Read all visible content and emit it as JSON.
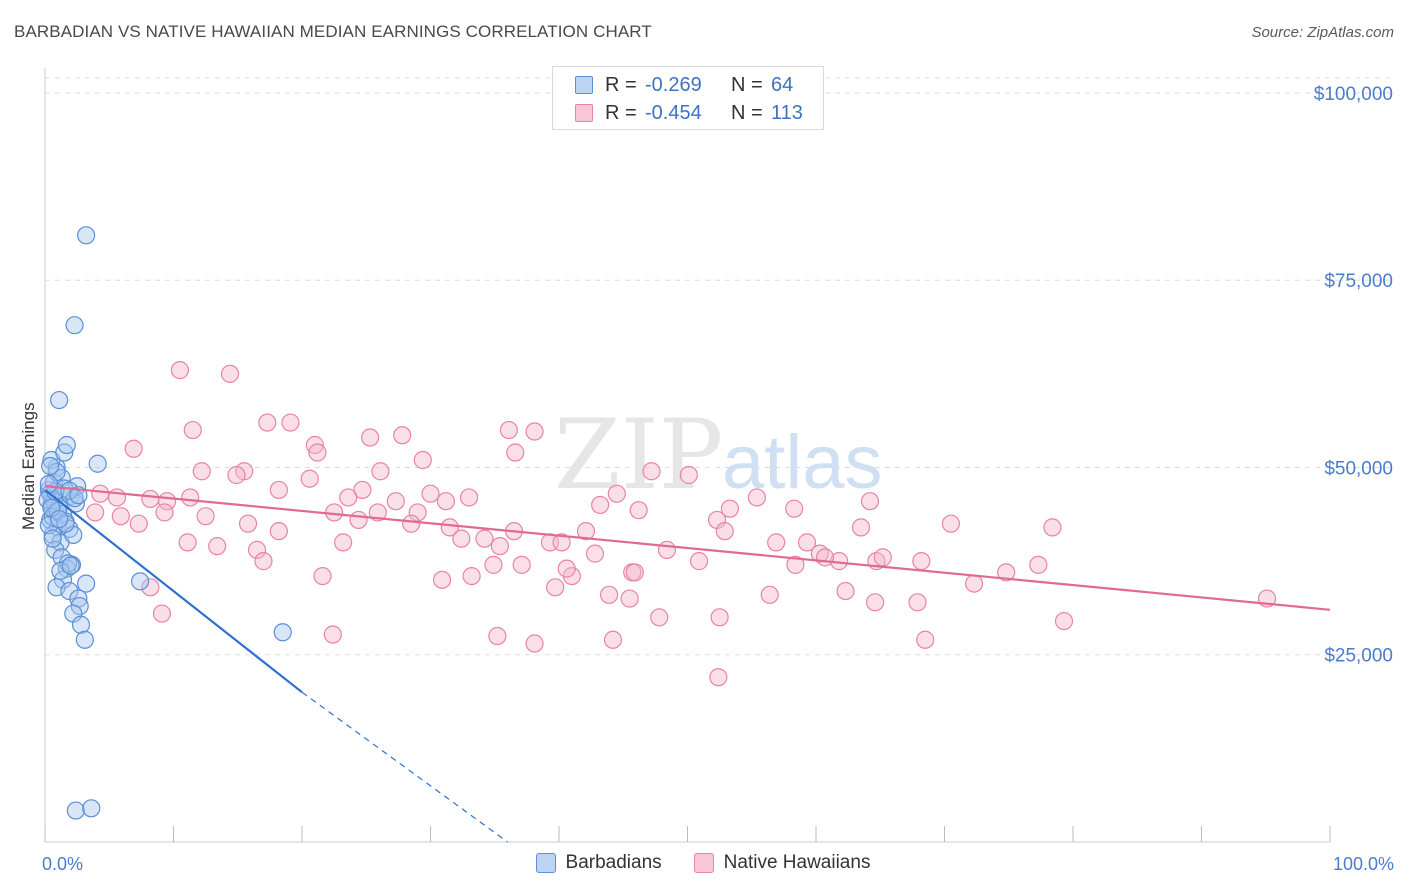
{
  "title": "BARBADIAN VS NATIVE HAWAIIAN MEDIAN EARNINGS CORRELATION CHART",
  "source": "Source: ZipAtlas.com",
  "watermark": {
    "zip": "ZIP",
    "atlas": "atlas"
  },
  "legend": {
    "rows": [
      {
        "r_label": "R =",
        "r_value": "-0.269",
        "n_label": "N =",
        "n_value": "64"
      },
      {
        "r_label": "R =",
        "r_value": "-0.454",
        "n_label": "N =",
        "n_value": "113"
      }
    ]
  },
  "bottom_legend": [
    "Barbadians",
    "Native Hawaiians"
  ],
  "colors": {
    "barbadian_fill": "#a9c8f0",
    "barbadian_stroke": "#5b8fd8",
    "barbadian_line": "#2f6fd0",
    "hawaiian_fill": "#f5b8cb",
    "hawaiian_stroke": "#e883a4",
    "hawaiian_line": "#e06a93",
    "tick": "#4a7ccc",
    "grid": "#dddddd"
  },
  "chart_data": {
    "type": "scatter",
    "title": "BARBADIAN VS NATIVE HAWAIIAN MEDIAN EARNINGS CORRELATION CHART",
    "xlabel": "",
    "ylabel": "Median Earnings",
    "xlim": [
      0,
      100
    ],
    "ylim": [
      0,
      102000
    ],
    "x_ticks": [
      0,
      100
    ],
    "x_tick_labels": [
      "0.0%",
      "100.0%"
    ],
    "y_ticks": [
      25000,
      50000,
      75000,
      100000
    ],
    "y_tick_labels": [
      "$25,000",
      "$50,000",
      "$75,000",
      "$100,000"
    ],
    "legend_position": "top-center",
    "series": [
      {
        "name": "Barbadians",
        "r": -0.269,
        "n": 64,
        "trend": {
          "x0": 0,
          "y0": 47000,
          "x1": 20,
          "y1": 20000,
          "dashed_to_x": 36
        },
        "points": [
          [
            0.3,
            47000
          ],
          [
            0.5,
            45000
          ],
          [
            0.6,
            46000
          ],
          [
            0.8,
            44000
          ],
          [
            0.4,
            43000
          ],
          [
            1.0,
            42000
          ],
          [
            0.7,
            48000
          ],
          [
            0.9,
            50000
          ],
          [
            0.5,
            51000
          ],
          [
            1.5,
            52000
          ],
          [
            1.7,
            53000
          ],
          [
            0.6,
            41000
          ],
          [
            1.2,
            40000
          ],
          [
            0.8,
            39000
          ],
          [
            1.3,
            38000
          ],
          [
            2.1,
            37000
          ],
          [
            1.7,
            36500
          ],
          [
            1.4,
            35000
          ],
          [
            0.9,
            34000
          ],
          [
            3.2,
            34500
          ],
          [
            1.9,
            33500
          ],
          [
            2.6,
            32500
          ],
          [
            2.7,
            31500
          ],
          [
            2.2,
            30500
          ],
          [
            2.8,
            29000
          ],
          [
            3.1,
            27000
          ],
          [
            1.1,
            59000
          ],
          [
            2.3,
            69000
          ],
          [
            3.2,
            81000
          ],
          [
            4.1,
            50500
          ],
          [
            7.4,
            34800
          ],
          [
            18.5,
            28000
          ],
          [
            2.4,
            4200
          ],
          [
            3.6,
            4500
          ],
          [
            0.4,
            46500
          ],
          [
            0.7,
            45500
          ],
          [
            1.1,
            44800
          ],
          [
            1.4,
            43800
          ],
          [
            1.6,
            42800
          ],
          [
            1.9,
            41800
          ],
          [
            2.2,
            41000
          ],
          [
            2.0,
            46200
          ],
          [
            2.5,
            47500
          ],
          [
            1.3,
            48600
          ],
          [
            0.9,
            49400
          ],
          [
            0.2,
            45700
          ],
          [
            0.6,
            43400
          ],
          [
            1.8,
            37200
          ],
          [
            1.2,
            36200
          ],
          [
            0.3,
            42300
          ],
          [
            2.4,
            45200
          ],
          [
            1.5,
            47200
          ],
          [
            0.8,
            46800
          ],
          [
            1.0,
            44200
          ],
          [
            2.3,
            45900
          ],
          [
            1.6,
            42500
          ],
          [
            0.4,
            50200
          ],
          [
            2.0,
            36900
          ],
          [
            0.5,
            44600
          ],
          [
            1.1,
            43100
          ],
          [
            1.9,
            46900
          ],
          [
            0.6,
            40500
          ],
          [
            2.6,
            46300
          ],
          [
            0.3,
            47800
          ]
        ]
      },
      {
        "name": "Native Hawaiians",
        "r": -0.454,
        "n": 113,
        "trend": {
          "x0": 0,
          "y0": 47500,
          "x1": 100,
          "y1": 31000
        },
        "points": [
          [
            10.5,
            63000
          ],
          [
            14.4,
            62500
          ],
          [
            11.5,
            55000
          ],
          [
            17.3,
            56000
          ],
          [
            19.1,
            56000
          ],
          [
            21.0,
            53000
          ],
          [
            21.2,
            52000
          ],
          [
            25.3,
            54000
          ],
          [
            27.8,
            54300
          ],
          [
            36.1,
            55000
          ],
          [
            38.1,
            54800
          ],
          [
            36.6,
            52000
          ],
          [
            29.4,
            51000
          ],
          [
            26.1,
            49500
          ],
          [
            24.7,
            47000
          ],
          [
            23.6,
            46000
          ],
          [
            22.5,
            44000
          ],
          [
            20.6,
            48500
          ],
          [
            18.2,
            47000
          ],
          [
            15.5,
            49500
          ],
          [
            14.9,
            49000
          ],
          [
            12.2,
            49500
          ],
          [
            11.3,
            46000
          ],
          [
            9.5,
            45500
          ],
          [
            8.2,
            45800
          ],
          [
            6.9,
            52500
          ],
          [
            5.6,
            46000
          ],
          [
            4.3,
            46500
          ],
          [
            3.9,
            44000
          ],
          [
            5.9,
            43500
          ],
          [
            7.3,
            42500
          ],
          [
            9.3,
            44000
          ],
          [
            12.5,
            43500
          ],
          [
            15.8,
            42500
          ],
          [
            18.2,
            41500
          ],
          [
            16.5,
            39000
          ],
          [
            13.4,
            39500
          ],
          [
            11.1,
            40000
          ],
          [
            8.2,
            34000
          ],
          [
            9.1,
            30500
          ],
          [
            17.0,
            37500
          ],
          [
            21.6,
            35500
          ],
          [
            22.4,
            27700
          ],
          [
            23.2,
            40000
          ],
          [
            24.4,
            43000
          ],
          [
            25.9,
            44000
          ],
          [
            27.3,
            45500
          ],
          [
            29.0,
            44000
          ],
          [
            28.5,
            42500
          ],
          [
            30.0,
            46500
          ],
          [
            31.2,
            45500
          ],
          [
            33.0,
            46000
          ],
          [
            31.5,
            42000
          ],
          [
            32.4,
            40500
          ],
          [
            34.2,
            40500
          ],
          [
            35.4,
            39500
          ],
          [
            36.5,
            41500
          ],
          [
            37.1,
            37000
          ],
          [
            39.3,
            40000
          ],
          [
            40.2,
            40000
          ],
          [
            42.1,
            41500
          ],
          [
            43.2,
            45000
          ],
          [
            44.5,
            46500
          ],
          [
            42.8,
            38500
          ],
          [
            41.0,
            35500
          ],
          [
            39.7,
            34000
          ],
          [
            43.9,
            33000
          ],
          [
            45.7,
            36000
          ],
          [
            46.2,
            44300
          ],
          [
            47.2,
            49500
          ],
          [
            50.1,
            49000
          ],
          [
            52.3,
            43000
          ],
          [
            53.3,
            44500
          ],
          [
            55.4,
            46000
          ],
          [
            58.3,
            44500
          ],
          [
            59.3,
            40000
          ],
          [
            61.8,
            37500
          ],
          [
            60.3,
            38500
          ],
          [
            63.5,
            42000
          ],
          [
            64.2,
            45500
          ],
          [
            70.5,
            42500
          ],
          [
            68.5,
            27000
          ],
          [
            64.7,
            37500
          ],
          [
            62.3,
            33500
          ],
          [
            58.4,
            37000
          ],
          [
            56.4,
            33000
          ],
          [
            52.5,
            30000
          ],
          [
            50.9,
            37500
          ],
          [
            47.8,
            30000
          ],
          [
            45.5,
            32500
          ],
          [
            44.2,
            27000
          ],
          [
            38.1,
            26500
          ],
          [
            35.2,
            27500
          ],
          [
            30.9,
            35000
          ],
          [
            33.2,
            35500
          ],
          [
            34.9,
            37000
          ],
          [
            40.6,
            36500
          ],
          [
            45.9,
            36000
          ],
          [
            48.4,
            39000
          ],
          [
            52.9,
            41500
          ],
          [
            56.9,
            40000
          ],
          [
            60.7,
            38000
          ],
          [
            65.2,
            38000
          ],
          [
            64.6,
            32000
          ],
          [
            67.9,
            32000
          ],
          [
            68.2,
            37500
          ],
          [
            72.3,
            34500
          ],
          [
            74.8,
            36000
          ],
          [
            77.3,
            37000
          ],
          [
            78.4,
            42000
          ],
          [
            79.3,
            29500
          ],
          [
            95.1,
            32500
          ],
          [
            52.4,
            22000
          ]
        ]
      }
    ]
  }
}
